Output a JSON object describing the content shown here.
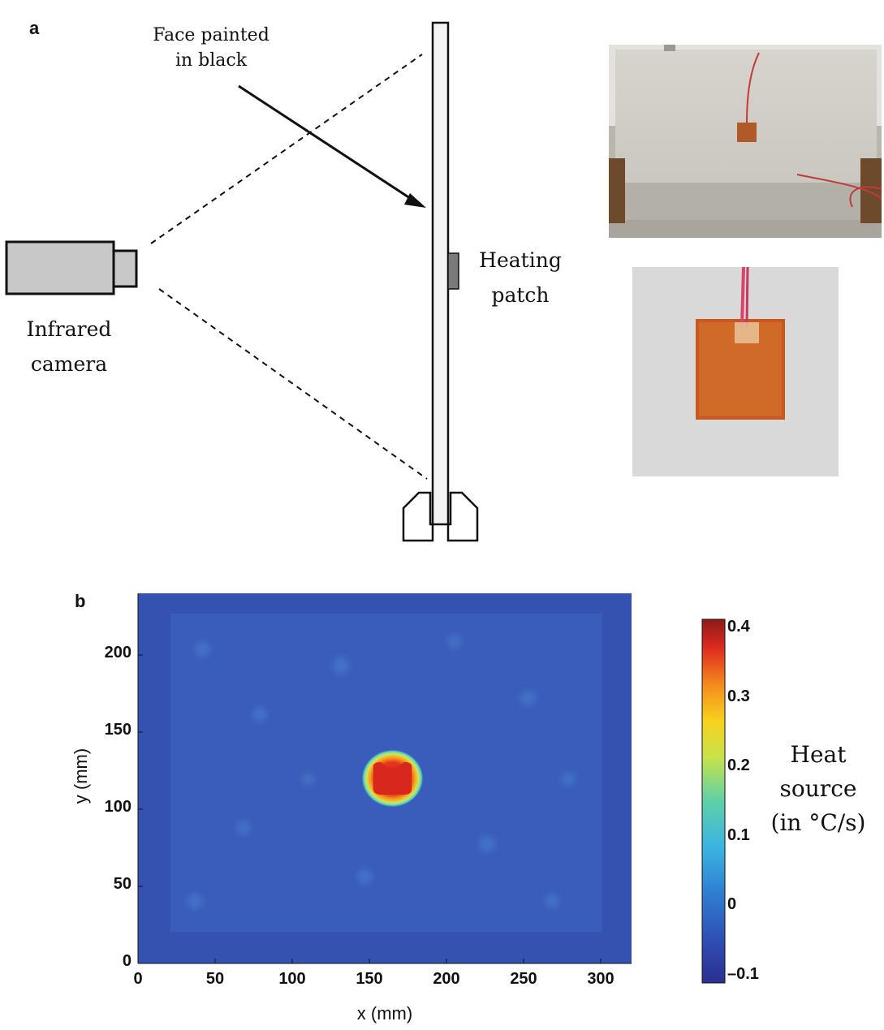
{
  "panel_a": {
    "label": "a",
    "face_label_line1": "Face painted",
    "face_label_line2": "in black",
    "heating_line1": "Heating",
    "heating_line2": "patch",
    "camera_line1": "Infrared",
    "camera_line2": "camera"
  },
  "panel_b": {
    "label": "b"
  },
  "chart_data": {
    "type": "heatmap",
    "xlabel": "x (mm)",
    "ylabel": "y (mm)",
    "xlim": [
      0,
      320
    ],
    "ylim": [
      0,
      240
    ],
    "x_ticks": [
      0,
      50,
      100,
      150,
      200,
      250,
      300
    ],
    "y_ticks": [
      0,
      50,
      100,
      150,
      200
    ],
    "colorbar": {
      "title_line1": "Heat",
      "title_line2": "source",
      "title_line3": "(in °C/s)",
      "range": [
        -0.1,
        0.4
      ],
      "ticks": [
        "0.4",
        "0.3",
        "0.2",
        "0.1",
        "0",
        "–0.1"
      ]
    },
    "background_value": 0,
    "hotspot": {
      "x_center": 165,
      "y_center": 120,
      "width": 30,
      "height": 28,
      "peak_value": 0.38
    }
  }
}
